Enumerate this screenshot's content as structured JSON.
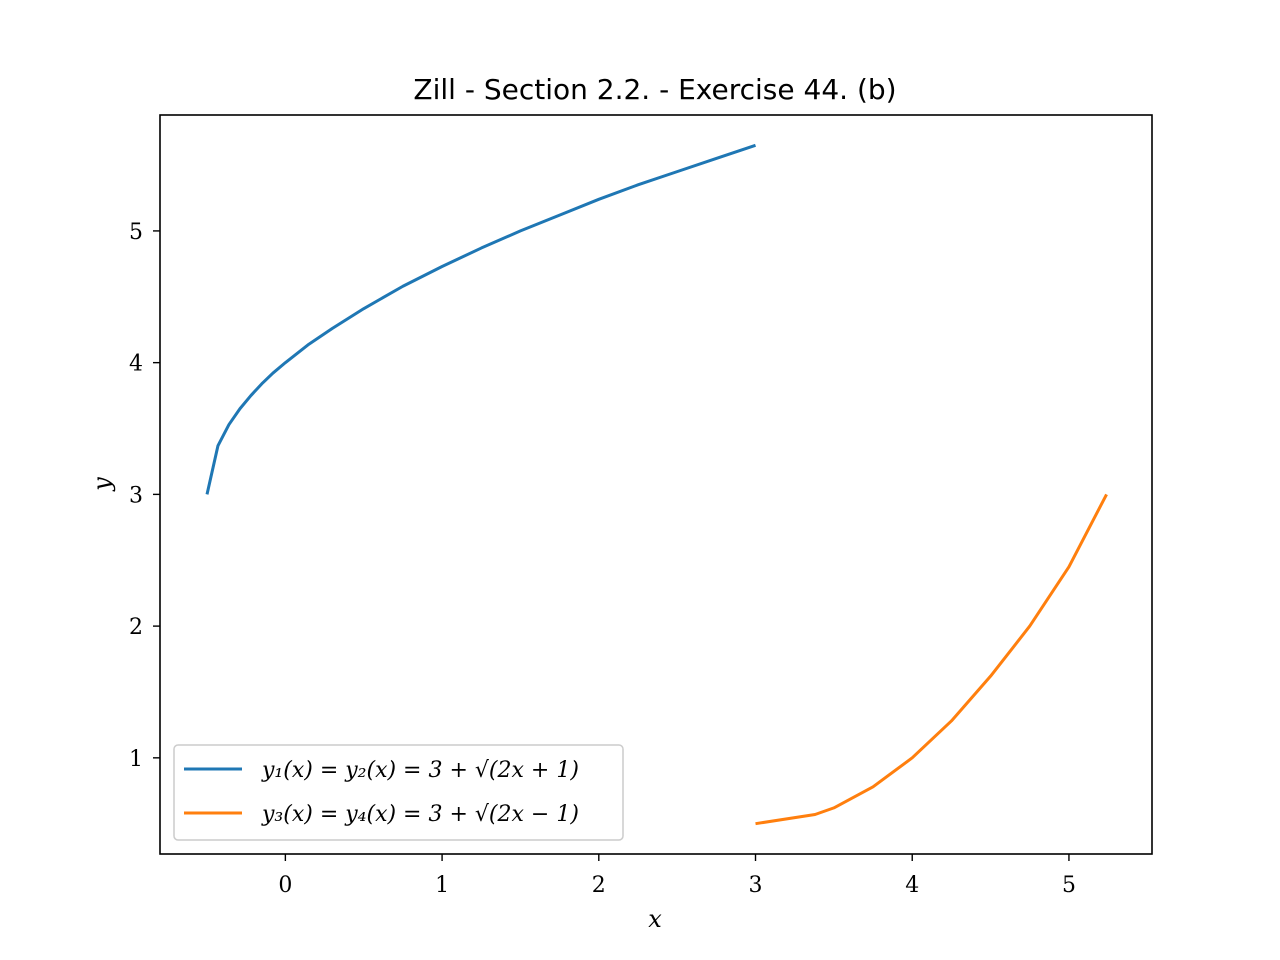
{
  "chart_data": {
    "type": "line",
    "title": "Zill - Section 2.2. - Exercise 44. (b)",
    "xlabel": "x",
    "ylabel": "y",
    "xlim": [
      -0.8,
      5.53
    ],
    "ylim": [
      0.27,
      5.88
    ],
    "xticks": [
      0,
      1,
      2,
      3,
      4,
      5
    ],
    "yticks": [
      1,
      2,
      3,
      4,
      5
    ],
    "grid": false,
    "legend_location": "lower-left",
    "series": [
      {
        "name": "y₁(x) = y₂(x) = 3 + √(2x + 1)",
        "color": "#1f77b4",
        "x": [
          -0.5,
          -0.43,
          -0.36,
          -0.29,
          -0.22,
          -0.15,
          -0.08,
          0.0,
          0.15,
          0.3,
          0.5,
          0.75,
          1.0,
          1.25,
          1.5,
          1.75,
          2.0,
          2.25,
          2.5,
          2.75,
          3.0
        ],
        "y": [
          3.0,
          3.37,
          3.53,
          3.65,
          3.75,
          3.84,
          3.92,
          4.0,
          4.14,
          4.26,
          4.41,
          4.58,
          4.73,
          4.87,
          5.0,
          5.12,
          5.24,
          5.35,
          5.45,
          5.55,
          5.65
        ]
      },
      {
        "name": "y₃(x) = y₄(x) = 3 + √(2x − 1)",
        "color": "#ff7f0e",
        "x": [
          3.0,
          3.38,
          3.5,
          3.75,
          4.0,
          4.25,
          4.5,
          4.75,
          5.0,
          5.24
        ],
        "y": [
          0.5,
          0.57,
          0.62,
          0.78,
          1.0,
          1.28,
          1.62,
          2.0,
          2.45,
          3.0
        ]
      }
    ]
  }
}
